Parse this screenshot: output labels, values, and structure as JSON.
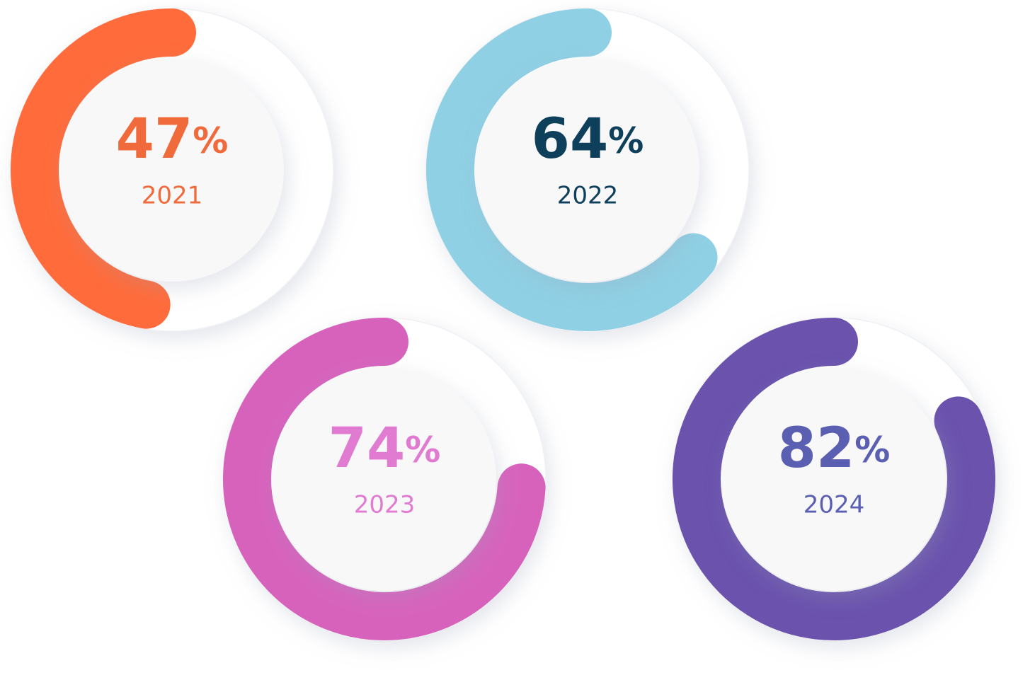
{
  "chart_data": [
    {
      "type": "gauge",
      "value": 47,
      "unit": "%",
      "label": "2021",
      "ylim": [
        0,
        100
      ],
      "color": "#ff6b3b",
      "text_color": "#f06a3c"
    },
    {
      "type": "gauge",
      "value": 64,
      "unit": "%",
      "label": "2022",
      "ylim": [
        0,
        100
      ],
      "color": "#8fd0e4",
      "text_color": "#0e3f5b"
    },
    {
      "type": "gauge",
      "value": 74,
      "unit": "%",
      "label": "2023",
      "ylim": [
        0,
        100
      ],
      "color": "#d762bc",
      "text_color": "#e07bd1"
    },
    {
      "type": "gauge",
      "value": 82,
      "unit": "%",
      "label": "2024",
      "ylim": [
        0,
        100
      ],
      "color": "#6a52ad",
      "text_color": "#5b5fb2"
    }
  ]
}
